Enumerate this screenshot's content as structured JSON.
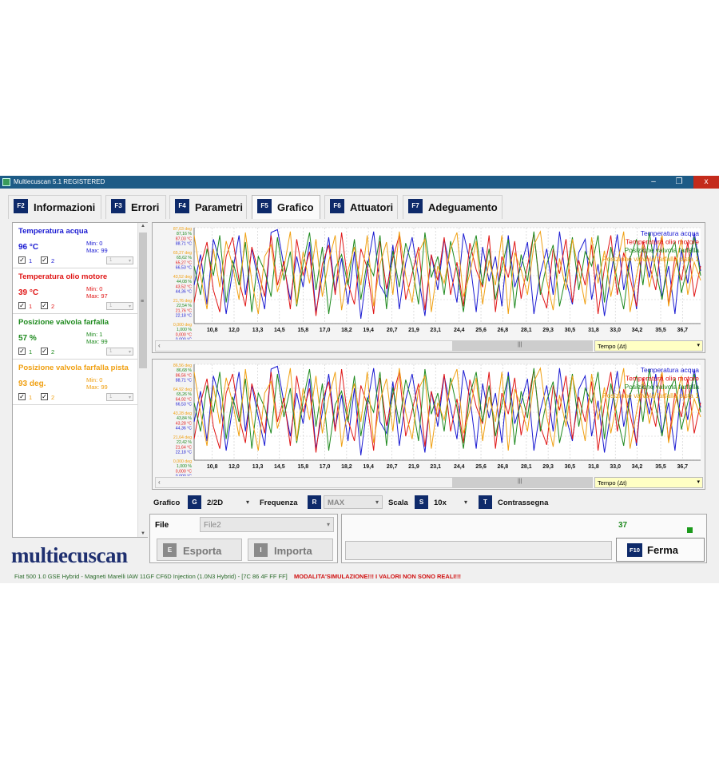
{
  "window": {
    "title": "Multiecuscan 5.1 REGISTERED",
    "controls": {
      "minimize": "‒",
      "maximize": "❐",
      "close": "x"
    }
  },
  "tabs": [
    {
      "key": "F2",
      "label": "Informazioni"
    },
    {
      "key": "F3",
      "label": "Errori"
    },
    {
      "key": "F4",
      "label": "Parametri"
    },
    {
      "key": "F5",
      "label": "Grafico",
      "active": true
    },
    {
      "key": "F6",
      "label": "Attuatori"
    },
    {
      "key": "F7",
      "label": "Adeguamento"
    }
  ],
  "parameters": [
    {
      "name": "Temperatura acqua",
      "value": "96 °C",
      "min": "Min: 0",
      "max": "Max: 99",
      "color": "#1a1ad2",
      "chk1": "1",
      "chk2": "2",
      "dd": "1"
    },
    {
      "name": "Temperatura olio motore",
      "value": "39 °C",
      "min": "Min: 0",
      "max": "Max: 97",
      "color": "#e01616",
      "chk1": "1",
      "chk2": "2",
      "dd": "1"
    },
    {
      "name": "Posizione valvola farfalla",
      "value": "57 %",
      "min": "Min: 1",
      "max": "Max: 99",
      "color": "#1e8a1e",
      "chk1": "1",
      "chk2": "2",
      "dd": "1"
    },
    {
      "name": "Posizione valvola farfalla pista",
      "value": "93 deg.",
      "min": "Min: 0",
      "max": "Max: 99",
      "color": "#f0a012",
      "chk1": "1",
      "chk2": "2",
      "dd": "1"
    }
  ],
  "logo": "multiecuscan",
  "charts": [
    {
      "y_labels": [
        {
          "text": "87,03 deg",
          "color": "#f0a012"
        },
        {
          "text": "87,16 %",
          "color": "#1e8a1e"
        },
        {
          "text": "87,03 °C",
          "color": "#e01616"
        },
        {
          "text": "88,71 °C",
          "color": "#1a1ad2"
        },
        {
          "text": "65,27 deg",
          "color": "#f0a012"
        },
        {
          "text": "65,62 %",
          "color": "#1e8a1e"
        },
        {
          "text": "65,27 °C",
          "color": "#e01616"
        },
        {
          "text": "66,53 °C",
          "color": "#1a1ad2"
        },
        {
          "text": "43,52 deg",
          "color": "#f0a012"
        },
        {
          "text": "44,08 %",
          "color": "#1e8a1e"
        },
        {
          "text": "43,52 °C",
          "color": "#e01616"
        },
        {
          "text": "44,36 °C",
          "color": "#1a1ad2"
        },
        {
          "text": "21,76 deg",
          "color": "#f0a012"
        },
        {
          "text": "22,54 %",
          "color": "#1e8a1e"
        },
        {
          "text": "21,76 °C",
          "color": "#e01616"
        },
        {
          "text": "22,18 °C",
          "color": "#1a1ad2"
        },
        {
          "text": "0,000 deg",
          "color": "#f0a012"
        },
        {
          "text": "1,000 %",
          "color": "#1e8a1e"
        },
        {
          "text": "0,000 °C",
          "color": "#e01616"
        },
        {
          "text": "0,000 °C",
          "color": "#1a1ad2"
        }
      ],
      "time_selector": "Tempo (Δt)"
    },
    {
      "y_labels": [
        {
          "text": "86,56 deg",
          "color": "#f0a012"
        },
        {
          "text": "86,68 %",
          "color": "#1e8a1e"
        },
        {
          "text": "86,56 °C",
          "color": "#e01616"
        },
        {
          "text": "88,71 °C",
          "color": "#1a1ad2"
        },
        {
          "text": "64,92 deg",
          "color": "#f0a012"
        },
        {
          "text": "65,26 %",
          "color": "#1e8a1e"
        },
        {
          "text": "64,92 °C",
          "color": "#e01616"
        },
        {
          "text": "66,53 °C",
          "color": "#1a1ad2"
        },
        {
          "text": "43,28 deg",
          "color": "#f0a012"
        },
        {
          "text": "43,84 %",
          "color": "#1e8a1e"
        },
        {
          "text": "43,28 °C",
          "color": "#e01616"
        },
        {
          "text": "44,36 °C",
          "color": "#1a1ad2"
        },
        {
          "text": "21,64 deg",
          "color": "#f0a012"
        },
        {
          "text": "22,42 %",
          "color": "#1e8a1e"
        },
        {
          "text": "21,64 °C",
          "color": "#e01616"
        },
        {
          "text": "22,18 °C",
          "color": "#1a1ad2"
        },
        {
          "text": "0,000 deg",
          "color": "#f0a012"
        },
        {
          "text": "1,000 %",
          "color": "#1e8a1e"
        },
        {
          "text": "0,000 °C",
          "color": "#e01616"
        },
        {
          "text": "0,000 °C",
          "color": "#1a1ad2"
        }
      ],
      "time_selector": "Tempo (Δt)"
    }
  ],
  "chart_data": {
    "type": "line",
    "x_ticks": [
      "10,8",
      "12,0",
      "13,3",
      "14,5",
      "15,8",
      "17,0",
      "18,2",
      "19,4",
      "20,7",
      "21,9",
      "23,1",
      "24,4",
      "25,6",
      "26,8",
      "28,1",
      "29,3",
      "30,5",
      "31,8",
      "33,0",
      "34,2",
      "35,5",
      "36,7"
    ],
    "xlim": [
      9.8,
      37.7
    ],
    "ylim": [
      0,
      100
    ],
    "xlabel": "Tempo (Δt)",
    "grid": true,
    "legend": "top-right",
    "series": [
      {
        "name": "Temperatura acqua",
        "color": "#1a1ad2",
        "values": [
          40,
          72,
          20,
          88,
          65,
          10,
          55,
          92,
          30,
          78,
          45,
          15,
          95,
          98,
          60,
          25,
          70,
          38,
          85,
          12,
          50,
          90,
          33,
          68,
          20,
          75,
          5,
          58,
          96,
          40,
          28,
          82,
          15,
          63,
          90,
          48,
          8,
          72,
          35,
          88,
          55,
          22,
          94,
          66,
          12,
          80,
          44,
          70,
          18,
          92,
          38,
          60,
          85,
          10,
          52,
          78,
          30,
          96,
          45,
          20,
          74,
          88,
          25,
          62,
          8,
          50,
          93,
          35,
          70,
          15,
          82,
          48,
          90,
          28,
          60,
          10,
          77,
          42,
          95,
          55
        ]
      },
      {
        "name": "Temperatura olio motore",
        "color": "#e01616",
        "values": [
          22,
          60,
          85,
          35,
          12,
          70,
          90,
          45,
          18,
          80,
          55,
          28,
          92,
          40,
          65,
          15,
          88,
          50,
          75,
          8,
          62,
          82,
          30,
          95,
          42,
          20,
          78,
          58,
          10,
          86,
          36,
          68,
          92,
          25,
          52,
          80,
          14,
          72,
          45,
          90,
          30,
          64,
          18,
          84,
          56,
          38,
          92,
          12,
          70,
          48,
          86,
          26,
          60,
          94,
          35,
          16,
          78,
          52,
          88,
          22,
          66,
          40,
          82,
          10,
          58,
          92,
          30,
          74,
          48,
          18,
          86,
          62,
          35,
          90,
          20,
          70,
          45,
          85,
          28,
          60
        ]
      },
      {
        "name": "Posizione valvola farfalla",
        "color": "#1e8a1e",
        "values": [
          60,
          30,
          78,
          50,
          92,
          22,
          66,
          40,
          85,
          12,
          70,
          55,
          28,
          90,
          45,
          75,
          18,
          62,
          95,
          35,
          80,
          10,
          58,
          72,
          40,
          88,
          25,
          65,
          50,
          92,
          15,
          76,
          38,
          84,
          60,
          20,
          95,
          48,
          70,
          30,
          86,
          55,
          12,
          68,
          92,
          40,
          78,
          25,
          58,
          88,
          16,
          72,
          44,
          96,
          30,
          62,
          82,
          18,
          50,
          90,
          35,
          75,
          60,
          92,
          22,
          80,
          45,
          15,
          68,
          88,
          40,
          95,
          55,
          25,
          72,
          85,
          32,
          60,
          90,
          50
        ]
      },
      {
        "name": "Posizione valvola farfalla pista 1",
        "color": "#f0a012",
        "values": [
          92,
          50,
          15,
          78,
          38,
          86,
          60,
          25,
          95,
          44,
          10,
          70,
          82,
          33,
          58,
          96,
          20,
          75,
          42,
          88,
          28,
          65,
          92,
          14,
          55,
          80,
          40,
          92,
          18,
          62,
          85,
          30,
          96,
          50,
          22,
          74,
          88,
          12,
          60,
          42,
          78,
          95,
          28,
          52,
          86,
          20,
          66,
          40,
          92,
          10,
          74,
          56,
          30,
          82,
          96,
          45,
          14,
          68,
          35,
          88,
          55,
          20,
          90,
          42,
          76,
          28,
          62,
          96,
          12,
          50,
          82,
          38,
          70,
          92,
          18,
          58,
          88,
          30,
          64,
          45
        ]
      }
    ]
  },
  "controls": {
    "grafico": {
      "label": "Grafico",
      "key": "G",
      "value": "2/2D",
      "arrow": "▾"
    },
    "frequenza": {
      "label": "Frequenza",
      "key": "R",
      "value": "MAX",
      "arrow": "▾"
    },
    "scala": {
      "label": "Scala",
      "key": "S",
      "value": "10x",
      "arrow": "▾"
    },
    "contrassegna": {
      "label": "Contrassegna",
      "key": "T"
    }
  },
  "file": {
    "label": "File",
    "value": "File2",
    "export": {
      "key": "E",
      "label": "Esporta"
    },
    "import": {
      "key": "I",
      "label": "Importa"
    }
  },
  "status": {
    "counter": "37",
    "progress": 0.0,
    "stop": {
      "key": "F10",
      "label": "Ferma"
    }
  },
  "statusbar": {
    "ecu": "Fiat 500 1.0 GSE Hybrid - Magneti Marelli IAW 11GF CF6D Injection (1.0N3 Hybrid) - [7C 86 4F FF FF]",
    "simulation": "MODALITA'SIMULAZIONE!!! I VALORI NON SONO REALI!!!"
  }
}
